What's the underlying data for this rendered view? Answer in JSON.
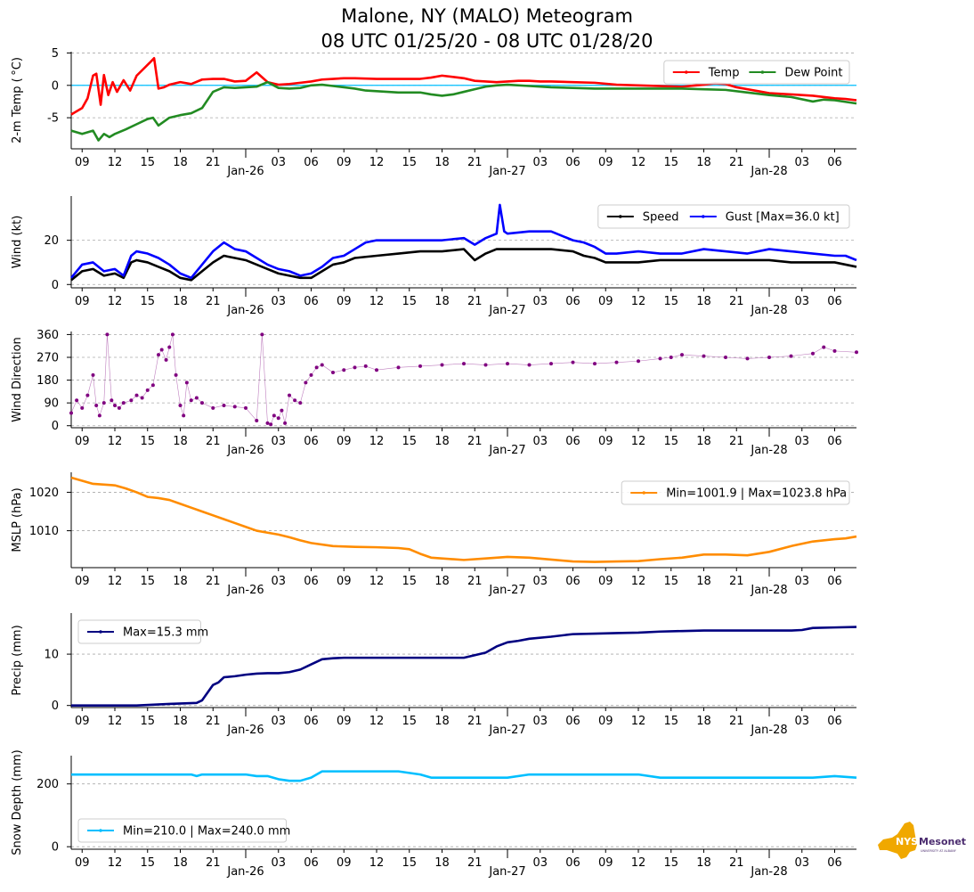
{
  "title_line1": "Malone, NY (MALO) Meteogram",
  "title_line2": "08 UTC 01/25/20 - 08 UTC 01/28/20",
  "logo": {
    "text": "NYS",
    "text2": "Mesonet",
    "subtext": "UNIVERSITY AT ALBANY",
    "color": "#f0a800",
    "text_color": "#4b2c6f"
  },
  "x_axis": {
    "start_hour": 8,
    "end_hour": 80,
    "hour_tick_labels": [
      "09",
      "12",
      "15",
      "18",
      "21",
      "03",
      "06",
      "09",
      "12",
      "15",
      "18",
      "21",
      "03",
      "06",
      "09",
      "12",
      "15",
      "18",
      "21",
      "03",
      "06"
    ],
    "hour_ticks_hours": [
      9,
      12,
      15,
      18,
      21,
      27,
      30,
      33,
      36,
      39,
      42,
      45,
      51,
      54,
      57,
      60,
      63,
      66,
      69,
      75,
      78
    ],
    "day_labels": [
      "Jan-26",
      "Jan-27",
      "Jan-28"
    ],
    "day_ticks_hours": [
      24,
      48,
      72
    ]
  },
  "chart_data": [
    {
      "type": "line",
      "ylabel": "2-m Temp ($^\\circ$C)",
      "ylabel_display": "2-m Temp ( °C)",
      "ylim": [
        -9.8,
        5.2
      ],
      "yticks": [
        -5,
        0,
        5
      ],
      "zero_line": {
        "value": 0,
        "color": "#00bfff"
      },
      "legend": {
        "loc": "upper right",
        "ncol": 2
      },
      "series": [
        {
          "name": "Temp",
          "color": "#ff0000",
          "x": [
            8,
            9,
            9.5,
            10,
            10.3,
            10.7,
            11,
            11.4,
            11.8,
            12.2,
            12.8,
            13.4,
            14,
            14.6,
            15.2,
            15.6,
            16,
            16.5,
            17,
            18,
            19,
            20,
            21,
            22,
            23,
            24,
            25,
            26,
            26.5,
            27,
            28,
            29,
            30,
            31,
            32,
            33,
            34,
            36,
            38,
            40,
            41,
            42,
            43,
            44,
            45,
            46,
            47,
            48,
            49,
            50,
            51,
            52,
            54,
            56,
            58,
            60,
            62,
            64,
            66,
            67,
            68,
            69,
            70,
            71,
            72,
            74,
            76,
            78,
            79,
            80
          ],
          "values": [
            -4.5,
            -3.5,
            -2,
            1.5,
            1.8,
            -3,
            1.6,
            -1.5,
            0.5,
            -1,
            0.8,
            -0.8,
            1.5,
            2.5,
            3.5,
            4.2,
            -0.5,
            -0.3,
            0.1,
            0.5,
            0.2,
            0.9,
            1,
            1,
            0.6,
            0.7,
            2,
            0.5,
            0.3,
            0.1,
            0.2,
            0.4,
            0.6,
            0.9,
            1,
            1.1,
            1.1,
            1,
            1,
            1,
            1.2,
            1.5,
            1.3,
            1.1,
            0.7,
            0.6,
            0.5,
            0.6,
            0.7,
            0.7,
            0.6,
            0.6,
            0.5,
            0.4,
            0.1,
            0,
            -0.1,
            -0.2,
            0.1,
            0.3,
            0.2,
            -0.3,
            -0.6,
            -0.9,
            -1.2,
            -1.4,
            -1.6,
            -2,
            -2.1,
            -2.3
          ]
        },
        {
          "name": "Dew Point",
          "color": "#228b22",
          "x": [
            8,
            9,
            10,
            10.5,
            11,
            11.5,
            12,
            13,
            14,
            15,
            15.5,
            16,
            17,
            18,
            19,
            20,
            21,
            22,
            23,
            24,
            25,
            26,
            27,
            28,
            29,
            30,
            31,
            32,
            33,
            34,
            35,
            36,
            38,
            40,
            41,
            42,
            43,
            44,
            45,
            46,
            47,
            48,
            50,
            52,
            54,
            56,
            58,
            60,
            62,
            64,
            66,
            68,
            70,
            72,
            74,
            76,
            77,
            78,
            80
          ],
          "values": [
            -7,
            -7.5,
            -7,
            -8.5,
            -7.5,
            -8,
            -7.5,
            -6.8,
            -6,
            -5.2,
            -5,
            -6.2,
            -5,
            -4.6,
            -4.3,
            -3.5,
            -1,
            -0.3,
            -0.4,
            -0.3,
            -0.2,
            0.5,
            -0.4,
            -0.5,
            -0.4,
            0,
            0.1,
            -0.1,
            -0.3,
            -0.5,
            -0.8,
            -0.9,
            -1.1,
            -1.1,
            -1.4,
            -1.6,
            -1.4,
            -1,
            -0.6,
            -0.2,
            0,
            0.1,
            -0.1,
            -0.3,
            -0.4,
            -0.5,
            -0.5,
            -0.5,
            -0.5,
            -0.5,
            -0.6,
            -0.7,
            -1.1,
            -1.5,
            -1.8,
            -2.5,
            -2.2,
            -2.3,
            -2.8
          ]
        }
      ]
    },
    {
      "type": "line",
      "ylabel": "Wind (kt)",
      "ylim": [
        -1.5,
        40
      ],
      "yticks": [
        0,
        20
      ],
      "legend": {
        "loc": "upper right",
        "ncol": 2
      },
      "series": [
        {
          "name": "Speed",
          "color": "#000000",
          "x": [
            8,
            9,
            10,
            11,
            12,
            12.8,
            13.5,
            14,
            15,
            16,
            17,
            18,
            19,
            20,
            21,
            22,
            23,
            24,
            25,
            26,
            27,
            28,
            29,
            30,
            31,
            32,
            33,
            34,
            36,
            38,
            40,
            42,
            44,
            45,
            46,
            47,
            48,
            50,
            52,
            54,
            55,
            56,
            57,
            58,
            60,
            62,
            64,
            66,
            68,
            70,
            72,
            74,
            76,
            78,
            79,
            80
          ],
          "values": [
            2,
            6,
            7,
            4,
            5,
            3,
            10,
            11,
            10,
            8,
            6,
            3,
            2,
            6,
            10,
            13,
            12,
            11,
            9,
            7,
            5,
            4,
            3,
            3,
            6,
            9,
            10,
            12,
            13,
            14,
            15,
            15,
            16,
            11,
            14,
            16,
            16,
            16,
            16,
            15,
            13,
            12,
            10,
            10,
            10,
            11,
            11,
            11,
            11,
            11,
            11,
            10,
            10,
            10,
            9,
            8
          ]
        },
        {
          "name": "Gust",
          "legend_label": "Gust [Max=36.0 kt]",
          "color": "#0000ff",
          "x": [
            8,
            9,
            10,
            11,
            12,
            12.8,
            13.5,
            14,
            15,
            16,
            17,
            18,
            19,
            20,
            21,
            22,
            23,
            24,
            25,
            26,
            27,
            28,
            29,
            30,
            31,
            32,
            33,
            34,
            35,
            36,
            38,
            40,
            42,
            44,
            45,
            46,
            47,
            47.3,
            47.7,
            48,
            50,
            52,
            54,
            55,
            56,
            57,
            58,
            60,
            62,
            64,
            66,
            68,
            70,
            72,
            74,
            76,
            78,
            79,
            80
          ],
          "values": [
            3,
            9,
            10,
            6,
            7,
            4,
            13,
            15,
            14,
            12,
            9,
            5,
            3,
            9,
            15,
            19,
            16,
            15,
            12,
            9,
            7,
            6,
            4,
            5,
            8,
            12,
            13,
            16,
            19,
            20,
            20,
            20,
            20,
            21,
            18,
            21,
            23,
            36,
            24,
            23,
            24,
            24,
            20,
            19,
            17,
            14,
            14,
            15,
            14,
            14,
            16,
            15,
            14,
            16,
            15,
            14,
            13,
            13,
            11
          ]
        }
      ]
    },
    {
      "type": "scatter",
      "ylabel": "Wind Direction",
      "ylim": [
        -8,
        372
      ],
      "yticks": [
        0,
        90,
        180,
        270,
        360
      ],
      "series": [
        {
          "name": "Direction",
          "color": "#800080",
          "x": [
            8,
            8.5,
            9,
            9.5,
            10,
            10.3,
            10.6,
            11,
            11.3,
            11.7,
            12,
            12.4,
            12.8,
            13.5,
            14,
            14.5,
            15,
            15.5,
            16,
            16.3,
            16.7,
            17,
            17.3,
            17.6,
            18,
            18.3,
            18.6,
            19,
            19.5,
            20,
            21,
            22,
            23,
            24,
            25,
            25.5,
            26,
            26.3,
            26.6,
            27,
            27.3,
            27.6,
            28,
            28.5,
            29,
            29.5,
            30,
            30.5,
            31,
            32,
            33,
            34,
            35,
            36,
            38,
            40,
            42,
            44,
            46,
            48,
            50,
            52,
            54,
            56,
            58,
            60,
            62,
            63,
            64,
            66,
            68,
            70,
            72,
            74,
            76,
            77,
            78,
            80
          ],
          "values": [
            50,
            100,
            70,
            120,
            200,
            80,
            40,
            90,
            360,
            100,
            80,
            70,
            90,
            100,
            120,
            110,
            140,
            160,
            280,
            300,
            260,
            310,
            360,
            200,
            80,
            40,
            170,
            100,
            110,
            90,
            70,
            80,
            75,
            70,
            20,
            360,
            10,
            5,
            40,
            30,
            60,
            10,
            120,
            100,
            90,
            170,
            200,
            230,
            240,
            210,
            220,
            230,
            235,
            220,
            230,
            235,
            240,
            245,
            240,
            245,
            240,
            245,
            250,
            245,
            250,
            255,
            265,
            270,
            280,
            275,
            270,
            265,
            270,
            275,
            285,
            310,
            295,
            290
          ]
        }
      ]
    },
    {
      "type": "line",
      "ylabel": "MSLP (hPa)",
      "ylim": [
        1000.4,
        1025.2
      ],
      "yticks": [
        1010,
        1020
      ],
      "legend": {
        "loc": "upper right",
        "ncol": 1
      },
      "series": [
        {
          "name": "MSLP",
          "legend_label": "Min=1001.9 | Max=1023.8 hPa",
          "color": "#ff8c00",
          "x": [
            8,
            9,
            10,
            12,
            13,
            14,
            15,
            16,
            17,
            18,
            19,
            20,
            21,
            22,
            23,
            24,
            25,
            26,
            27,
            28,
            29,
            30,
            32,
            34,
            36,
            38,
            39,
            40,
            41,
            42,
            44,
            46,
            48,
            50,
            52,
            54,
            56,
            58,
            60,
            62,
            64,
            66,
            68,
            70,
            72,
            74,
            76,
            78,
            79,
            80
          ],
          "values": [
            1023.8,
            1023,
            1022.2,
            1021.8,
            1021,
            1020,
            1018.8,
            1018.5,
            1018,
            1017,
            1016,
            1015,
            1014,
            1013,
            1012,
            1011,
            1010,
            1009.5,
            1009,
            1008.3,
            1007.5,
            1006.8,
            1006,
            1005.8,
            1005.7,
            1005.5,
            1005.2,
            1004,
            1003,
            1002.8,
            1002.4,
            1002.8,
            1003.2,
            1003,
            1002.5,
            1002,
            1001.9,
            1002,
            1002.1,
            1002.6,
            1003,
            1003.8,
            1003.8,
            1003.6,
            1004.5,
            1006,
            1007.2,
            1007.8,
            1008,
            1008.5
          ]
        }
      ]
    },
    {
      "type": "line",
      "ylabel": "Precip (mm)",
      "ylim": [
        -0.4,
        18
      ],
      "yticks": [
        0,
        10
      ],
      "legend": {
        "loc": "upper left",
        "ncol": 1
      },
      "series": [
        {
          "name": "Precip",
          "legend_label": "Max=15.3 mm",
          "color": "#000080",
          "x": [
            8,
            14,
            17,
            19.5,
            20,
            20.5,
            21,
            21.5,
            22,
            23,
            24,
            25,
            26,
            27,
            28,
            29,
            30,
            31,
            32,
            33,
            34,
            36,
            38,
            40,
            42,
            44,
            45,
            46,
            47,
            48,
            49,
            50,
            52,
            54,
            56,
            58,
            60,
            62,
            64,
            66,
            68,
            70,
            72,
            74,
            75,
            76,
            78,
            80
          ],
          "values": [
            0,
            0,
            0.3,
            0.5,
            1,
            2.5,
            4,
            4.5,
            5.5,
            5.7,
            6,
            6.2,
            6.3,
            6.3,
            6.5,
            7,
            8,
            9,
            9.2,
            9.3,
            9.3,
            9.3,
            9.3,
            9.3,
            9.3,
            9.3,
            9.8,
            10.3,
            11.5,
            12.3,
            12.6,
            13,
            13.4,
            13.9,
            14,
            14.1,
            14.2,
            14.4,
            14.5,
            14.6,
            14.6,
            14.6,
            14.6,
            14.6,
            14.7,
            15.1,
            15.2,
            15.3
          ]
        }
      ]
    },
    {
      "type": "line",
      "ylabel": "Snow Depth (mm)",
      "ylim": [
        -8,
        290
      ],
      "yticks": [
        0,
        200
      ],
      "legend": {
        "loc": "lower left",
        "ncol": 1
      },
      "series": [
        {
          "name": "Snow Depth",
          "legend_label": "Min=210.0 | Max=240.0 mm",
          "color": "#00bfff",
          "x": [
            8,
            12,
            13.5,
            14,
            16,
            18,
            19,
            19.5,
            20,
            21,
            22,
            23,
            24,
            25,
            26,
            27,
            28,
            29,
            30,
            31,
            33,
            35,
            36,
            38,
            40,
            41,
            42,
            44,
            46,
            47,
            48,
            50,
            52,
            54,
            56,
            58,
            60,
            62,
            64,
            66,
            68,
            69,
            70,
            72,
            74,
            76,
            78,
            80
          ],
          "values": [
            230,
            230,
            230,
            230,
            230,
            230,
            230,
            225,
            230,
            230,
            230,
            230,
            230,
            225,
            225,
            215,
            210,
            210,
            220,
            240,
            240,
            240,
            240,
            240,
            230,
            220,
            220,
            220,
            220,
            220,
            220,
            230,
            230,
            230,
            230,
            230,
            230,
            220,
            220,
            220,
            220,
            220,
            220,
            220,
            220,
            220,
            225,
            220
          ]
        }
      ]
    }
  ]
}
